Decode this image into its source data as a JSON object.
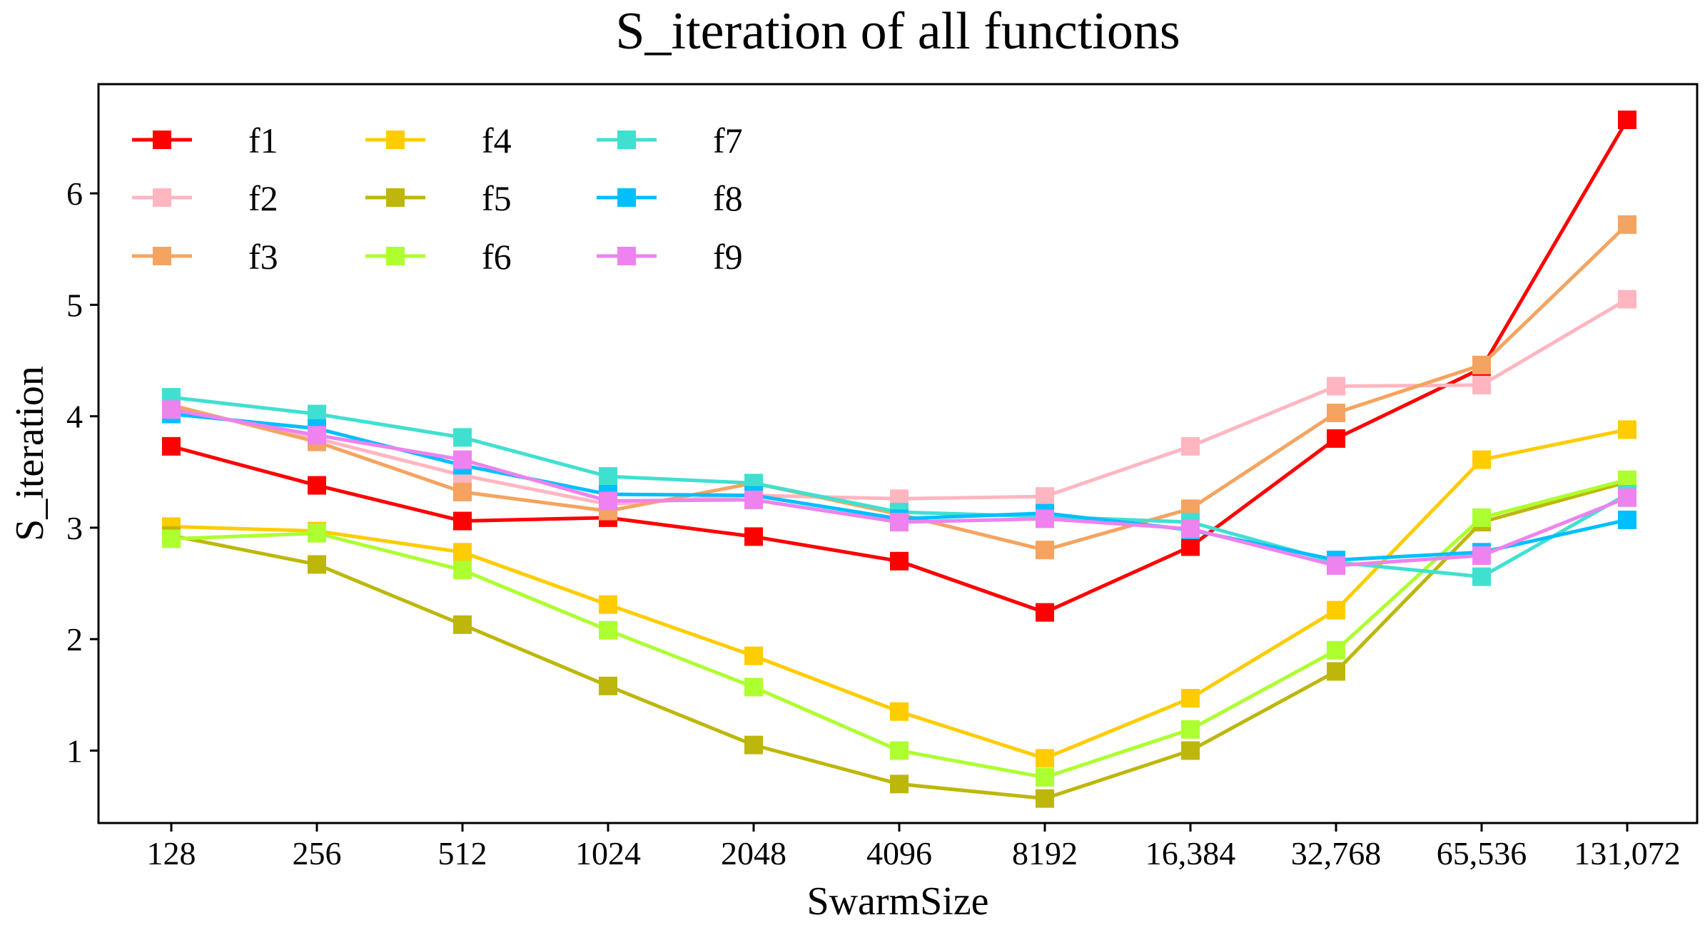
{
  "chart_data": {
    "type": "line",
    "title": "S_iteration of all functions",
    "xlabel": "SwarmSize",
    "ylabel": "S_iteration",
    "categories": [
      "128",
      "256",
      "512",
      "1024",
      "2048",
      "4096",
      "8192",
      "16,384",
      "32,768",
      "65,536",
      "131,072"
    ],
    "ylim": [
      0.35,
      6.98
    ],
    "yticks": [
      1,
      2,
      3,
      4,
      5,
      6
    ],
    "legend_position": "top-left",
    "marker": "square",
    "series": [
      {
        "name": "f1",
        "color": "#ff0000",
        "values": [
          3.73,
          3.38,
          3.06,
          3.09,
          2.92,
          2.7,
          2.24,
          2.83,
          3.8,
          4.43,
          6.66
        ]
      },
      {
        "name": "f2",
        "color": "#ffb6c1",
        "values": [
          4.08,
          3.8,
          3.47,
          3.21,
          3.29,
          3.26,
          3.28,
          3.73,
          4.27,
          4.28,
          5.05
        ]
      },
      {
        "name": "f3",
        "color": "#f4a460",
        "values": [
          4.1,
          3.77,
          3.32,
          3.15,
          3.4,
          3.12,
          2.8,
          3.17,
          4.03,
          4.46,
          5.72
        ]
      },
      {
        "name": "f4",
        "color": "#ffcc00",
        "values": [
          3.01,
          2.97,
          2.78,
          2.31,
          1.85,
          1.35,
          0.93,
          1.47,
          2.26,
          3.61,
          3.88
        ]
      },
      {
        "name": "f5",
        "color": "#bdb70b",
        "values": [
          2.93,
          2.67,
          2.13,
          1.58,
          1.05,
          0.7,
          0.57,
          1.0,
          1.71,
          3.05,
          3.41
        ]
      },
      {
        "name": "f6",
        "color": "#adff2f",
        "values": [
          2.9,
          2.95,
          2.62,
          2.08,
          1.57,
          1.0,
          0.76,
          1.19,
          1.9,
          3.09,
          3.43
        ]
      },
      {
        "name": "f7",
        "color": "#40e0d0",
        "values": [
          4.17,
          4.02,
          3.81,
          3.46,
          3.4,
          3.14,
          3.1,
          3.05,
          2.69,
          2.56,
          3.3
        ]
      },
      {
        "name": "f8",
        "color": "#00bfff",
        "values": [
          4.02,
          3.89,
          3.56,
          3.3,
          3.29,
          3.08,
          3.13,
          2.98,
          2.71,
          2.78,
          3.07
        ]
      },
      {
        "name": "f9",
        "color": "#ee82ee",
        "values": [
          4.06,
          3.83,
          3.61,
          3.24,
          3.25,
          3.05,
          3.08,
          2.99,
          2.66,
          2.75,
          3.27
        ]
      }
    ]
  }
}
